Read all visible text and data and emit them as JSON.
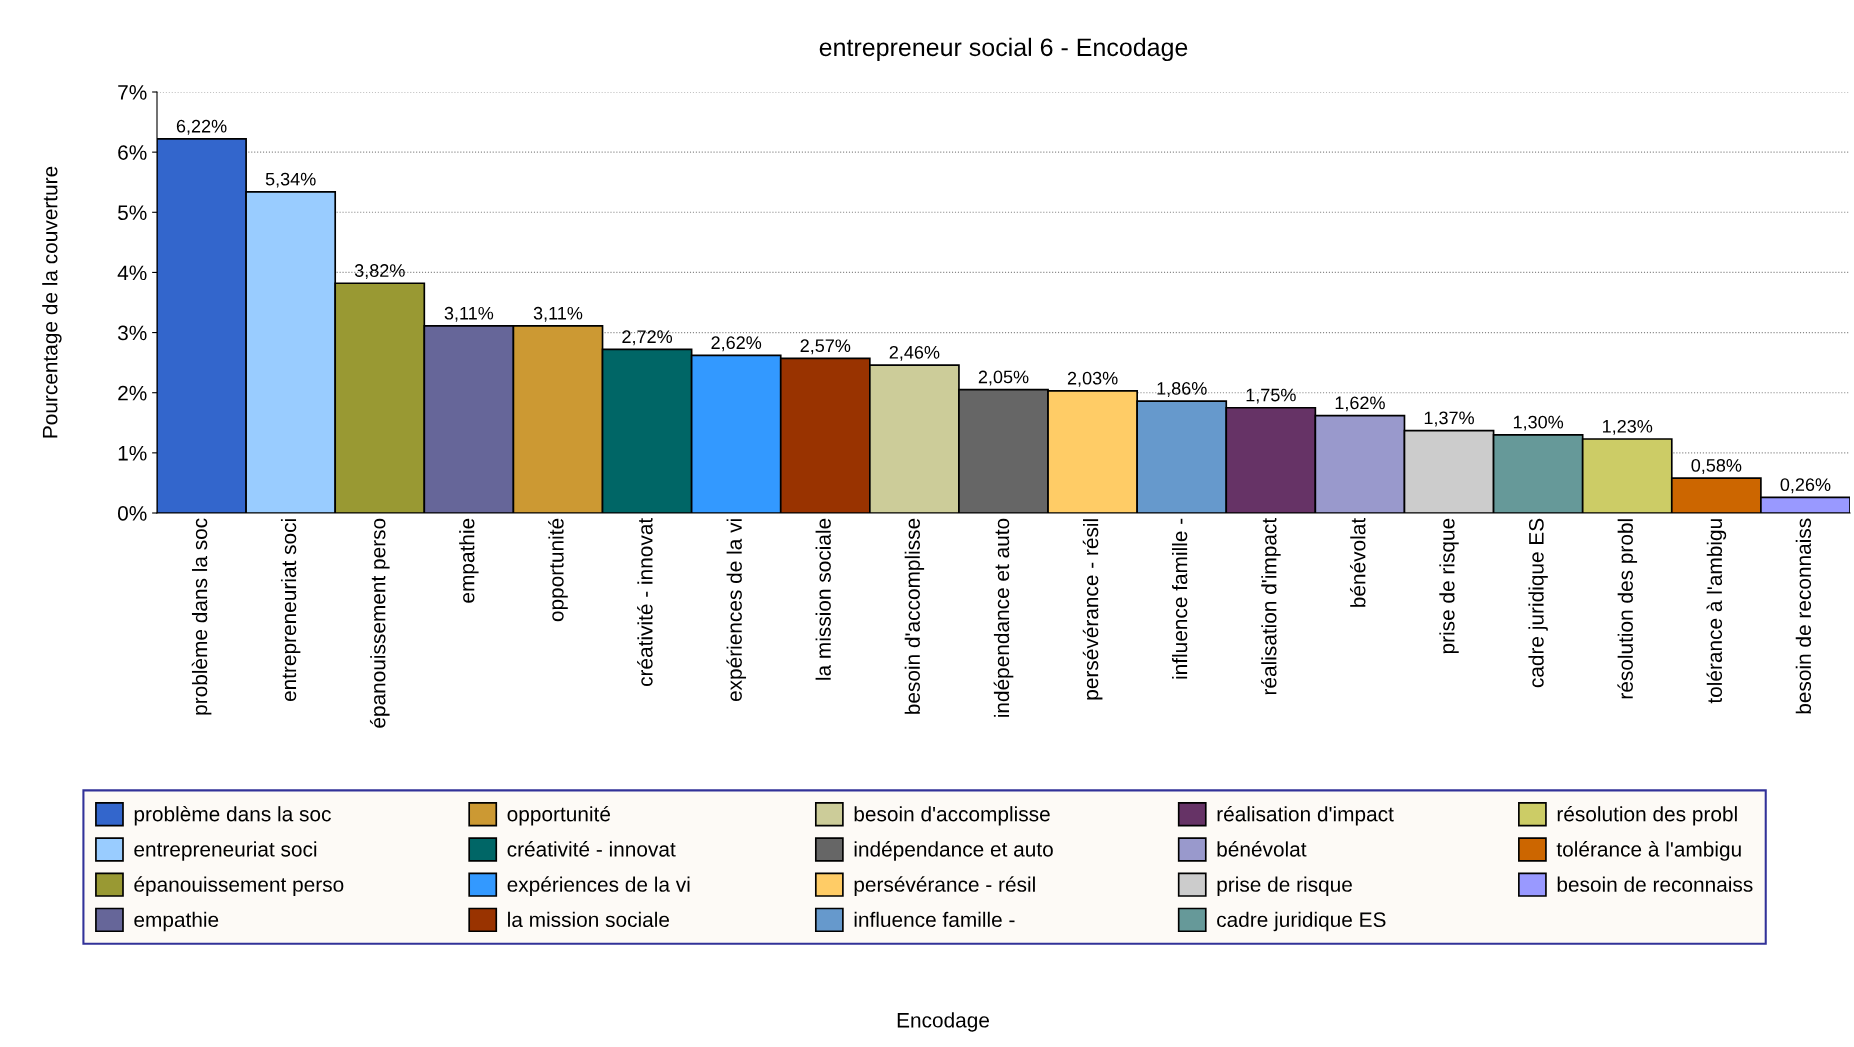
{
  "chart_data": {
    "type": "bar",
    "title": "entrepreneur social 6 - Encodage",
    "annotations": [
      "Encodage"
    ],
    "ylabel": "Pourcentage de la couverture",
    "categories": [
      "problème dans la soc",
      "entrepreneuriat soci",
      "épanouissement perso",
      "empathie",
      "opportunité",
      "créativité - innovat",
      "expériences de la vi",
      "la mission sociale",
      "besoin d'accomplisse",
      "indépendance et auto",
      "persévérance - résil",
      "influence famille -",
      "réalisation d'impact",
      "bénévolat",
      "prise de risque",
      "cadre juridique ES",
      "résolution des probl",
      "tolérance à l'ambigu",
      "besoin de reconnaiss"
    ],
    "series": [
      {
        "name": "problème dans la soc",
        "color": "#3366cc",
        "values": [
          6.22,
          null,
          null,
          null,
          null,
          null,
          null,
          null,
          null,
          null,
          null,
          null,
          null,
          null,
          null,
          null,
          null,
          null,
          null
        ],
        "value_labels": [
          "6,22%",
          null,
          null,
          null,
          null,
          null,
          null,
          null,
          null,
          null,
          null,
          null,
          null,
          null,
          null,
          null,
          null,
          null,
          null
        ]
      },
      {
        "name": "entrepreneuriat soci",
        "color": "#99ccff",
        "values": [
          null,
          5.34,
          null,
          null,
          null,
          null,
          null,
          null,
          null,
          null,
          null,
          null,
          null,
          null,
          null,
          null,
          null,
          null,
          null
        ],
        "value_labels": [
          null,
          "5,34%",
          null,
          null,
          null,
          null,
          null,
          null,
          null,
          null,
          null,
          null,
          null,
          null,
          null,
          null,
          null,
          null,
          null
        ]
      },
      {
        "name": "épanouissement perso",
        "color": "#999933",
        "values": [
          null,
          null,
          3.82,
          null,
          null,
          null,
          null,
          null,
          null,
          null,
          null,
          null,
          null,
          null,
          null,
          null,
          null,
          null,
          null
        ],
        "value_labels": [
          null,
          null,
          "3,82%",
          null,
          null,
          null,
          null,
          null,
          null,
          null,
          null,
          null,
          null,
          null,
          null,
          null,
          null,
          null,
          null
        ]
      },
      {
        "name": "empathie",
        "color": "#666699",
        "values": [
          null,
          null,
          null,
          3.11,
          null,
          null,
          null,
          null,
          null,
          null,
          null,
          null,
          null,
          null,
          null,
          null,
          null,
          null,
          null
        ],
        "value_labels": [
          null,
          null,
          null,
          "3,11%",
          null,
          null,
          null,
          null,
          null,
          null,
          null,
          null,
          null,
          null,
          null,
          null,
          null,
          null,
          null
        ]
      },
      {
        "name": "opportunité",
        "color": "#cc9933",
        "values": [
          null,
          null,
          null,
          null,
          3.11,
          null,
          null,
          null,
          null,
          null,
          null,
          null,
          null,
          null,
          null,
          null,
          null,
          null,
          null
        ],
        "value_labels": [
          null,
          null,
          null,
          null,
          "3,11%",
          null,
          null,
          null,
          null,
          null,
          null,
          null,
          null,
          null,
          null,
          null,
          null,
          null,
          null
        ]
      },
      {
        "name": "créativité - innovat",
        "color": "#006666",
        "values": [
          null,
          null,
          null,
          null,
          null,
          2.72,
          null,
          null,
          null,
          null,
          null,
          null,
          null,
          null,
          null,
          null,
          null,
          null,
          null
        ],
        "value_labels": [
          null,
          null,
          null,
          null,
          null,
          "2,72%",
          null,
          null,
          null,
          null,
          null,
          null,
          null,
          null,
          null,
          null,
          null,
          null,
          null
        ]
      },
      {
        "name": "expériences de la vi",
        "color": "#3399ff",
        "values": [
          null,
          null,
          null,
          null,
          null,
          null,
          2.62,
          null,
          null,
          null,
          null,
          null,
          null,
          null,
          null,
          null,
          null,
          null,
          null
        ],
        "value_labels": [
          null,
          null,
          null,
          null,
          null,
          null,
          "2,62%",
          null,
          null,
          null,
          null,
          null,
          null,
          null,
          null,
          null,
          null,
          null,
          null
        ]
      },
      {
        "name": "la mission sociale",
        "color": "#993300",
        "values": [
          null,
          null,
          null,
          null,
          null,
          null,
          null,
          2.57,
          null,
          null,
          null,
          null,
          null,
          null,
          null,
          null,
          null,
          null,
          null
        ],
        "value_labels": [
          null,
          null,
          null,
          null,
          null,
          null,
          null,
          "2,57%",
          null,
          null,
          null,
          null,
          null,
          null,
          null,
          null,
          null,
          null,
          null
        ]
      },
      {
        "name": "besoin d'accomplisse",
        "color": "#cccc99",
        "values": [
          null,
          null,
          null,
          null,
          null,
          null,
          null,
          null,
          2.46,
          null,
          null,
          null,
          null,
          null,
          null,
          null,
          null,
          null,
          null
        ],
        "value_labels": [
          null,
          null,
          null,
          null,
          null,
          null,
          null,
          null,
          "2,46%",
          null,
          null,
          null,
          null,
          null,
          null,
          null,
          null,
          null,
          null
        ]
      },
      {
        "name": "indépendance et auto",
        "color": "#666666",
        "values": [
          null,
          null,
          null,
          null,
          null,
          null,
          null,
          null,
          null,
          2.05,
          null,
          null,
          null,
          null,
          null,
          null,
          null,
          null,
          null
        ],
        "value_labels": [
          null,
          null,
          null,
          null,
          null,
          null,
          null,
          null,
          null,
          "2,05%",
          null,
          null,
          null,
          null,
          null,
          null,
          null,
          null,
          null
        ]
      },
      {
        "name": "persévérance - résil",
        "color": "#ffcc66",
        "values": [
          null,
          null,
          null,
          null,
          null,
          null,
          null,
          null,
          null,
          null,
          2.03,
          null,
          null,
          null,
          null,
          null,
          null,
          null,
          null
        ],
        "value_labels": [
          null,
          null,
          null,
          null,
          null,
          null,
          null,
          null,
          null,
          null,
          "2,03%",
          null,
          null,
          null,
          null,
          null,
          null,
          null,
          null
        ]
      },
      {
        "name": "influence famille -",
        "color": "#6699cc",
        "values": [
          null,
          null,
          null,
          null,
          null,
          null,
          null,
          null,
          null,
          null,
          null,
          1.86,
          null,
          null,
          null,
          null,
          null,
          null,
          null
        ],
        "value_labels": [
          null,
          null,
          null,
          null,
          null,
          null,
          null,
          null,
          null,
          null,
          null,
          "1,86%",
          null,
          null,
          null,
          null,
          null,
          null,
          null
        ]
      },
      {
        "name": "réalisation d'impact",
        "color": "#663366",
        "values": [
          null,
          null,
          null,
          null,
          null,
          null,
          null,
          null,
          null,
          null,
          null,
          null,
          1.75,
          null,
          null,
          null,
          null,
          null,
          null
        ],
        "value_labels": [
          null,
          null,
          null,
          null,
          null,
          null,
          null,
          null,
          null,
          null,
          null,
          null,
          "1,75%",
          null,
          null,
          null,
          null,
          null,
          null
        ]
      },
      {
        "name": "bénévolat",
        "color": "#9999cc",
        "values": [
          null,
          null,
          null,
          null,
          null,
          null,
          null,
          null,
          null,
          null,
          null,
          null,
          null,
          1.62,
          null,
          null,
          null,
          null,
          null
        ],
        "value_labels": [
          null,
          null,
          null,
          null,
          null,
          null,
          null,
          null,
          null,
          null,
          null,
          null,
          null,
          "1,62%",
          null,
          null,
          null,
          null,
          null
        ]
      },
      {
        "name": "prise de risque",
        "color": "#cccccc",
        "values": [
          null,
          null,
          null,
          null,
          null,
          null,
          null,
          null,
          null,
          null,
          null,
          null,
          null,
          null,
          1.37,
          null,
          null,
          null,
          null
        ],
        "value_labels": [
          null,
          null,
          null,
          null,
          null,
          null,
          null,
          null,
          null,
          null,
          null,
          null,
          null,
          null,
          "1,37%",
          null,
          null,
          null,
          null
        ]
      },
      {
        "name": "cadre juridique ES",
        "color": "#669999",
        "values": [
          null,
          null,
          null,
          null,
          null,
          null,
          null,
          null,
          null,
          null,
          null,
          null,
          null,
          null,
          null,
          1.3,
          null,
          null,
          null
        ],
        "value_labels": [
          null,
          null,
          null,
          null,
          null,
          null,
          null,
          null,
          null,
          null,
          null,
          null,
          null,
          null,
          null,
          "1,30%",
          null,
          null,
          null
        ]
      },
      {
        "name": "résolution des probl",
        "color": "#cccc66",
        "values": [
          null,
          null,
          null,
          null,
          null,
          null,
          null,
          null,
          null,
          null,
          null,
          null,
          null,
          null,
          null,
          null,
          1.23,
          null,
          null
        ],
        "value_labels": [
          null,
          null,
          null,
          null,
          null,
          null,
          null,
          null,
          null,
          null,
          null,
          null,
          null,
          null,
          null,
          null,
          "1,23%",
          null,
          null
        ]
      },
      {
        "name": "tolérance à l'ambigu",
        "color": "#cc6600",
        "values": [
          null,
          null,
          null,
          null,
          null,
          null,
          null,
          null,
          null,
          null,
          null,
          null,
          null,
          null,
          null,
          null,
          null,
          0.58,
          null
        ],
        "value_labels": [
          null,
          null,
          null,
          null,
          null,
          null,
          null,
          null,
          null,
          null,
          null,
          null,
          null,
          null,
          null,
          null,
          null,
          "0,58%",
          null
        ]
      },
      {
        "name": "besoin de reconnaiss",
        "color": "#9999ff",
        "values": [
          null,
          null,
          null,
          null,
          null,
          null,
          null,
          null,
          null,
          null,
          null,
          null,
          null,
          null,
          null,
          null,
          null,
          null,
          0.26
        ],
        "value_labels": [
          null,
          null,
          null,
          null,
          null,
          null,
          null,
          null,
          null,
          null,
          null,
          null,
          null,
          null,
          null,
          null,
          null,
          null,
          "0,26%"
        ]
      }
    ],
    "ylim": [
      0,
      7
    ],
    "yticks": [
      {
        "value": 0,
        "label": "0%"
      },
      {
        "value": 1,
        "label": "1%"
      },
      {
        "value": 2,
        "label": "2%"
      },
      {
        "value": 3,
        "label": "3%"
      },
      {
        "value": 4,
        "label": "4%"
      },
      {
        "value": 5,
        "label": "5%"
      },
      {
        "value": 6,
        "label": "6%"
      },
      {
        "value": 7,
        "label": "7%"
      }
    ],
    "grid": "y",
    "legend": "bottom"
  }
}
